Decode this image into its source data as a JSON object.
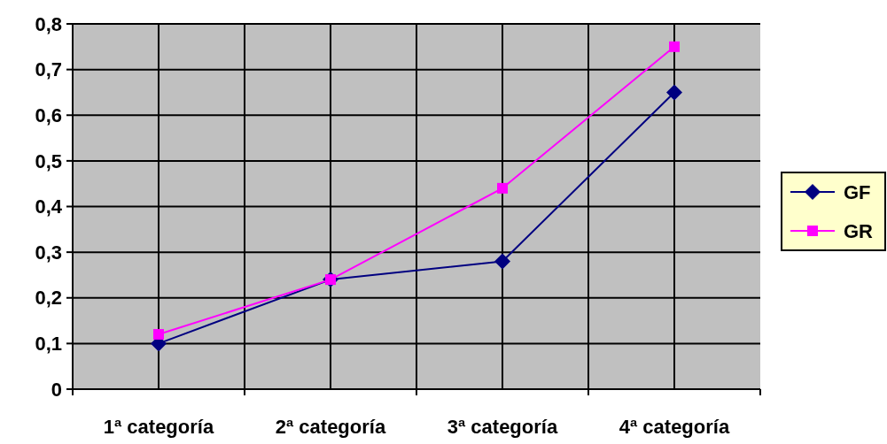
{
  "chart_data": {
    "type": "line",
    "categories": [
      "1ª categoría",
      "2ª categoría",
      "3ª categoría",
      "4ª categoría"
    ],
    "series": [
      {
        "name": "GF",
        "color": "#000080",
        "marker": "diamond",
        "values": [
          0.1,
          0.24,
          0.28,
          0.65
        ]
      },
      {
        "name": "GR",
        "color": "#ff00ff",
        "marker": "square",
        "values": [
          0.12,
          0.24,
          0.44,
          0.75
        ]
      }
    ],
    "ylim": [
      0,
      0.8
    ],
    "yticks": [
      0,
      {
        "value": 0.1,
        "label": "0,1"
      },
      {
        "value": 0.2,
        "label": "0,2"
      },
      {
        "value": 0.3,
        "label": "0,3"
      },
      {
        "value": 0.4,
        "label": "0,4"
      },
      {
        "value": 0.5,
        "label": "0,5"
      },
      {
        "value": 0.6,
        "label": "0,6"
      },
      {
        "value": 0.7,
        "label": "0,7"
      },
      {
        "value": 0.8,
        "label": "0,8"
      }
    ],
    "grid": true,
    "legend": "right",
    "line_style": "solid"
  }
}
